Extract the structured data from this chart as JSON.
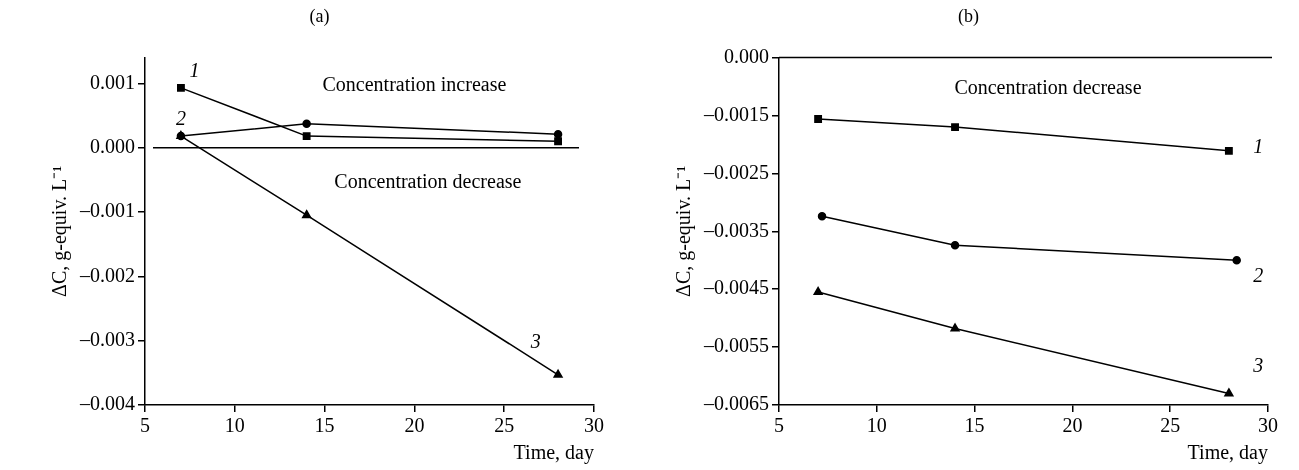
{
  "chart_data": [
    {
      "type": "line",
      "title": "(a)",
      "xlabel": "Time, day",
      "ylabel": "ΔC, g-equiv. L⁻¹",
      "xlim": [
        5,
        30
      ],
      "xticks": [
        5,
        10,
        15,
        20,
        25,
        30
      ],
      "ylim": [
        -0.004,
        0.0014
      ],
      "yticks": [
        {
          "value": -0.004,
          "label": "–0.004"
        },
        {
          "value": -0.003,
          "label": "–0.003"
        },
        {
          "value": -0.002,
          "label": "–0.002"
        },
        {
          "value": -0.001,
          "label": "–0.001"
        },
        {
          "value": 0,
          "label": "0.000"
        },
        {
          "value": 0.001,
          "label": "0.001"
        }
      ],
      "grid": false,
      "legend": false,
      "line_style": "solid",
      "series": [
        {
          "x": [
            7,
            14,
            28
          ],
          "values": [
            0.00093,
            0.00018,
            0.0001
          ],
          "color": "#000000",
          "marker": "square"
        },
        {
          "x": [
            7,
            14,
            28
          ],
          "values": [
            0.00018,
            0.00037,
            0.00021
          ],
          "color": "#000000",
          "marker": "circle"
        },
        {
          "x": [
            7,
            14,
            28
          ],
          "values": [
            0.00018,
            -0.00105,
            -0.00353
          ],
          "color": "#000000",
          "marker": "triangle"
        }
      ],
      "ref_lines": [
        {
          "axis": "y",
          "value": 0,
          "color": "#000000"
        }
      ],
      "annotations": [
        "1",
        "2",
        "3",
        "Concentration increase",
        "Concentration decrease"
      ]
    },
    {
      "type": "line",
      "title": "(b)",
      "xlabel": "Time, day",
      "ylabel": "ΔC, g-equiv. L⁻¹",
      "xlim": [
        5,
        30
      ],
      "xticks": [
        5,
        10,
        15,
        20,
        25,
        30
      ],
      "ylim": [
        -0.0065,
        -0.0005
      ],
      "yticks": [
        {
          "value": -0.0065,
          "label": "–0.0065"
        },
        {
          "value": -0.0055,
          "label": "–0.0055"
        },
        {
          "value": -0.0045,
          "label": "–0.0045"
        },
        {
          "value": -0.0035,
          "label": "–0.0035"
        },
        {
          "value": -0.0025,
          "label": "–0.0025"
        },
        {
          "value": -0.0015,
          "label": "–0.0015"
        },
        {
          "value": -0.0005,
          "label": "0.000"
        }
      ],
      "grid": false,
      "legend": false,
      "line_style": "solid",
      "series": [
        {
          "x": [
            7,
            14,
            28
          ],
          "values": [
            -0.00156,
            -0.0017,
            -0.00211
          ],
          "color": "#000000",
          "marker": "square"
        },
        {
          "x": [
            7.2,
            14,
            28.4
          ],
          "values": [
            -0.00324,
            -0.00374,
            -0.004
          ],
          "color": "#000000",
          "marker": "circle"
        },
        {
          "x": [
            7,
            14,
            28
          ],
          "values": [
            -0.00455,
            -0.00518,
            -0.0063
          ],
          "color": "#000000",
          "marker": "triangle"
        }
      ],
      "annotations": [
        "1",
        "2",
        "3",
        "Concentration decrease"
      ]
    }
  ]
}
